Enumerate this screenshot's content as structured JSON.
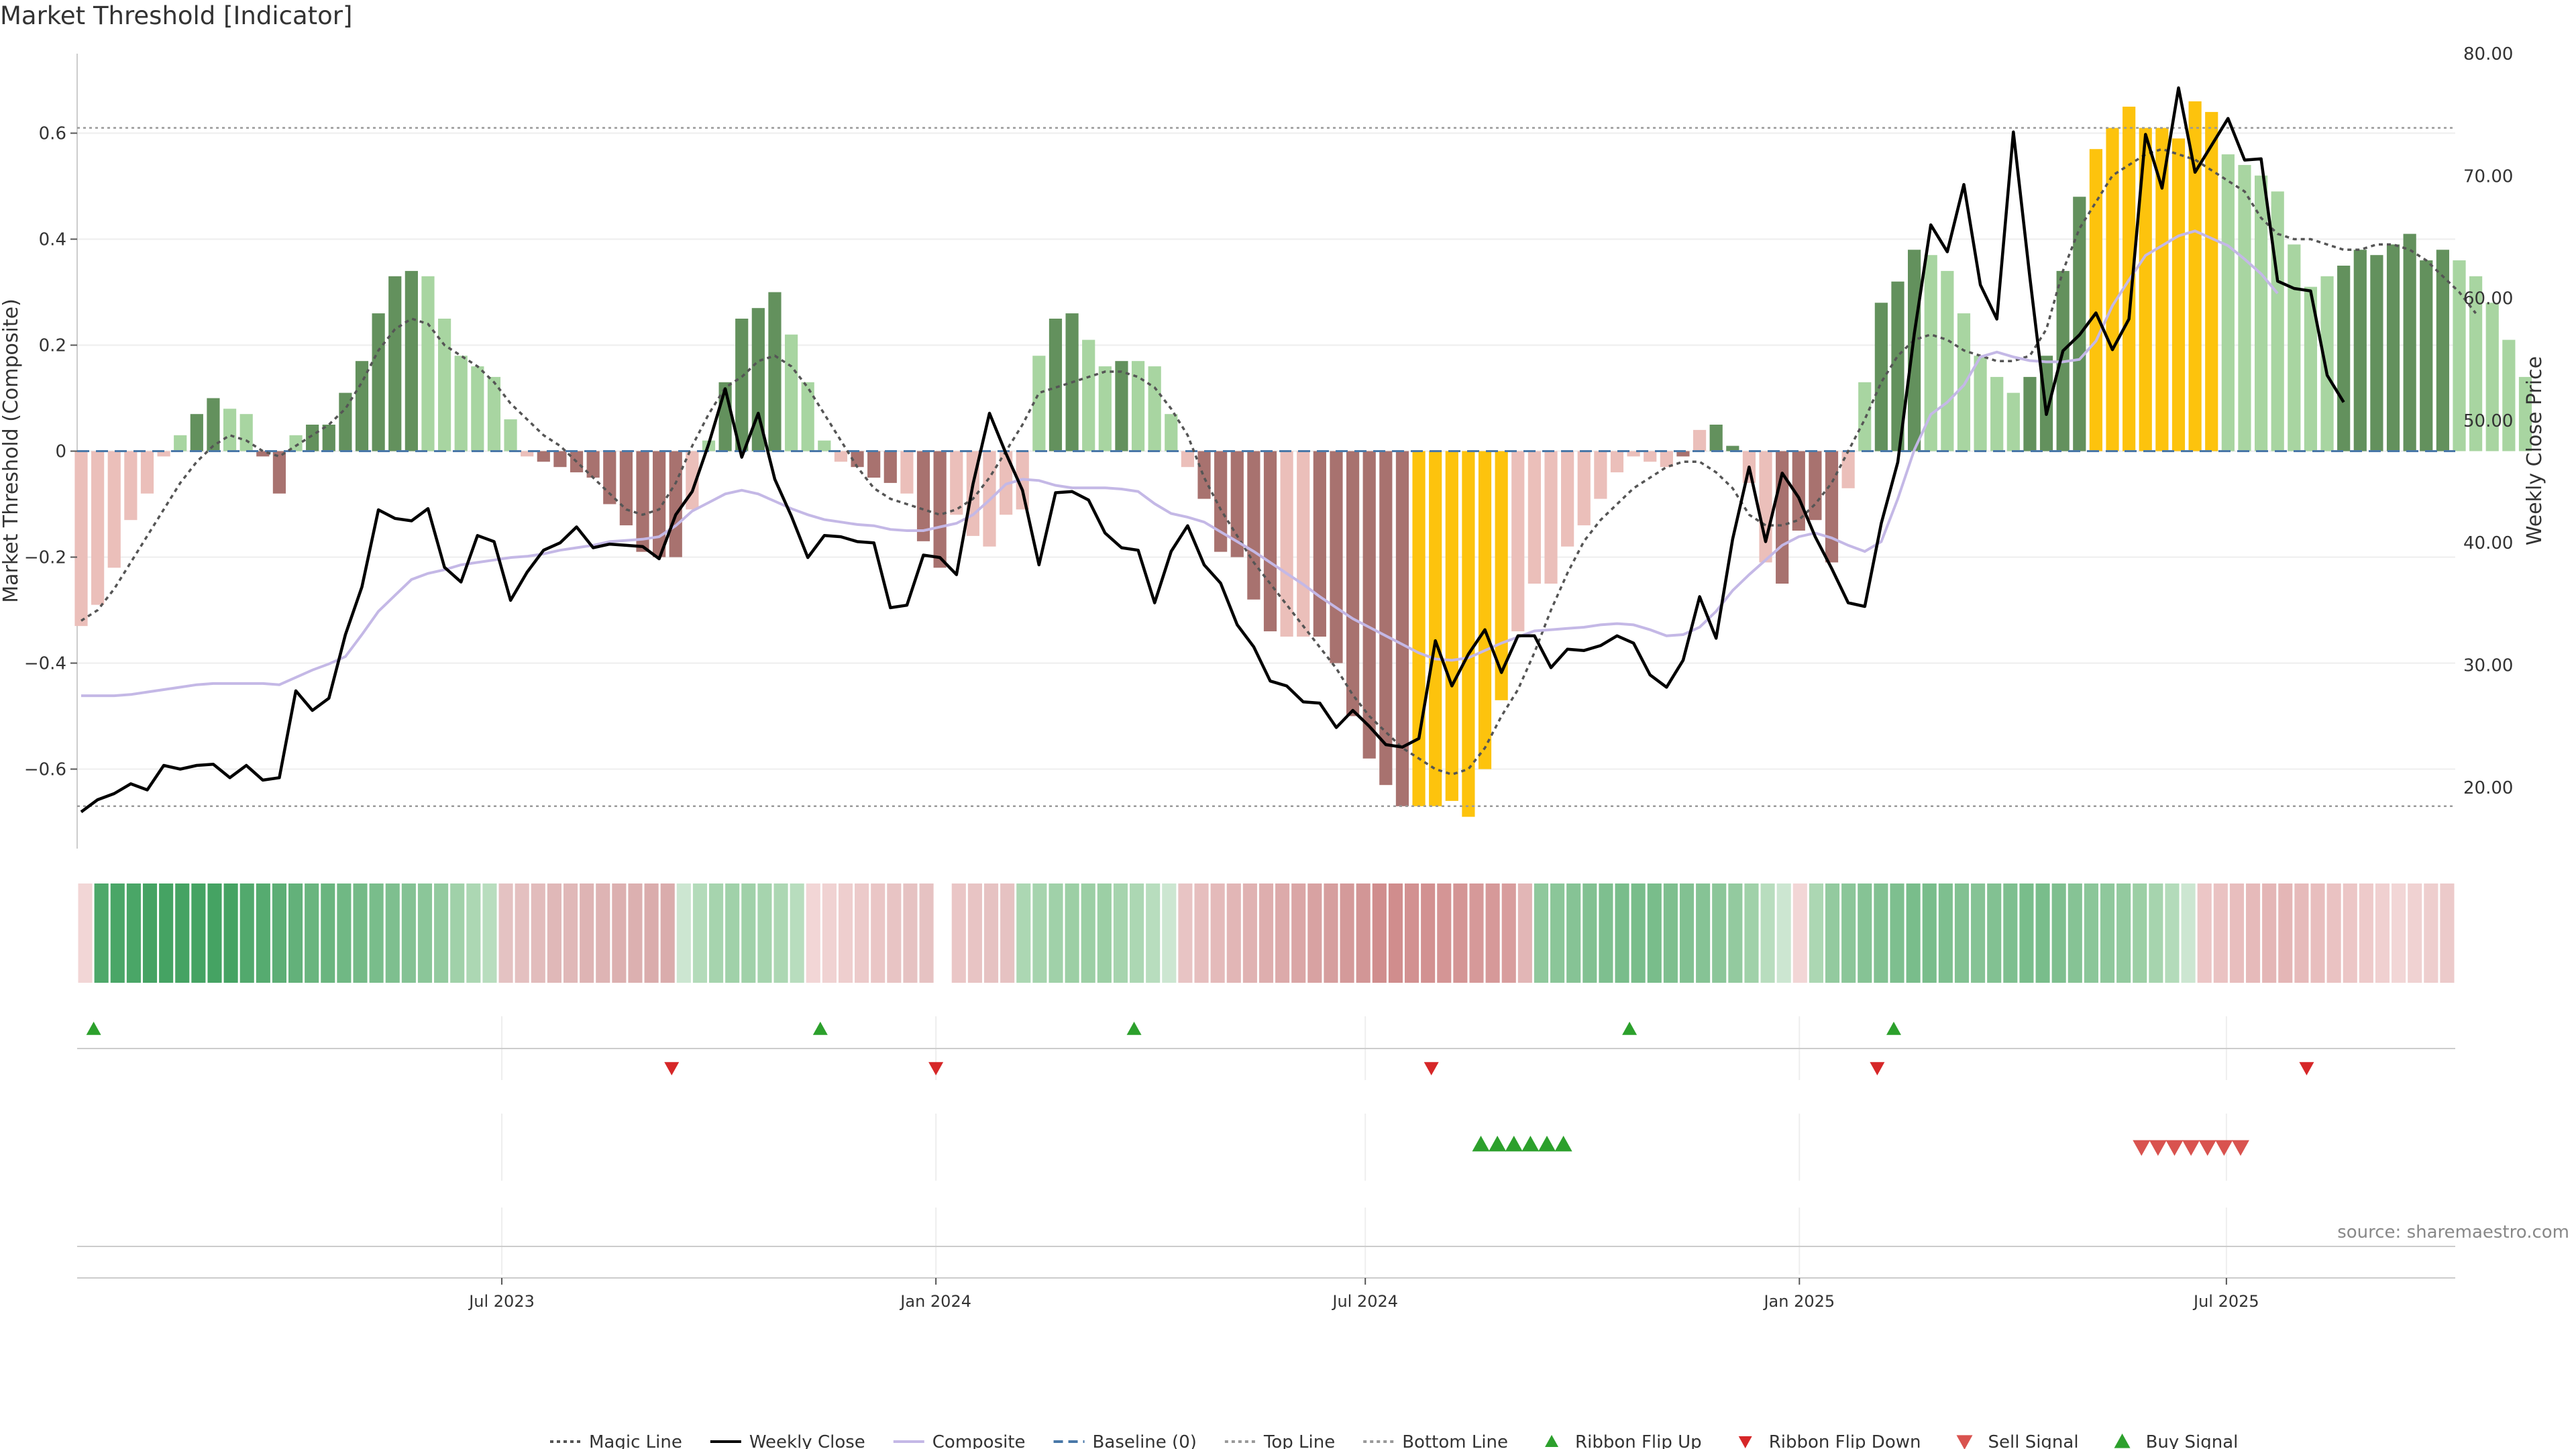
{
  "title": "Market Threshold [Indicator]",
  "source": "source: sharemaestro.com",
  "chart_data": {
    "type": "bar",
    "title": "Market Threshold [Indicator]",
    "ylabel_left": "Market Threshold (Composite)",
    "ylabel_right": "Weekly Close Price",
    "ylim_left": [
      -0.75,
      0.75
    ],
    "ylim_right": [
      15,
      80
    ],
    "yticks_left": [
      0.6,
      0.4,
      0.2,
      0,
      -0.2,
      -0.4,
      -0.6
    ],
    "ytick_labels_left": [
      "0.6",
      "0.4",
      "0.2",
      "0",
      "−0.2",
      "−0.4",
      "−0.6"
    ],
    "yticks_right": [
      80,
      70,
      60,
      50,
      40,
      30,
      20
    ],
    "ytick_labels_right": [
      "80.00",
      "70.00",
      "60.00",
      "50.00",
      "40.00",
      "30.00",
      "20.00"
    ],
    "date_range": [
      "2023-01-02",
      "2025-10-06"
    ],
    "xticks": [
      {
        "date": "2023-07-01",
        "label": "Jul 2023"
      },
      {
        "date": "2024-01-01",
        "label": "Jan 2024"
      },
      {
        "date": "2024-07-01",
        "label": "Jul 2024"
      },
      {
        "date": "2025-01-01",
        "label": "Jan 2025"
      },
      {
        "date": "2025-07-01",
        "label": "Jul 2025"
      }
    ],
    "top_line": 0.61,
    "bottom_line": -0.67,
    "composite_bars": {
      "start_date": "2023-01-02",
      "interval_days": 7,
      "values": [
        -0.33,
        -0.29,
        -0.22,
        -0.13,
        -0.08,
        -0.01,
        0.03,
        0.07,
        0.1,
        0.08,
        0.07,
        -0.01,
        -0.08,
        0.03,
        0.05,
        0.05,
        0.11,
        0.17,
        0.26,
        0.33,
        0.34,
        0.33,
        0.25,
        0.18,
        0.16,
        0.14,
        0.06,
        -0.01,
        -0.02,
        -0.03,
        -0.04,
        -0.05,
        -0.1,
        -0.14,
        -0.19,
        -0.2,
        -0.2,
        -0.11,
        0.02,
        0.13,
        0.25,
        0.27,
        0.3,
        0.22,
        0.13,
        0.02,
        -0.02,
        -0.03,
        -0.05,
        -0.06,
        -0.08,
        -0.17,
        -0.22,
        -0.12,
        -0.16,
        -0.18,
        -0.12,
        -0.11,
        0.18,
        0.25,
        0.26,
        0.21,
        0.16,
        0.17,
        0.17,
        0.16,
        0.07,
        -0.03,
        -0.09,
        -0.19,
        -0.2,
        -0.28,
        -0.34,
        -0.35,
        -0.35,
        -0.35,
        -0.4,
        -0.5,
        -0.58,
        -0.63,
        -0.67,
        -0.67,
        -0.67,
        -0.66,
        -0.69,
        -0.6,
        -0.47,
        -0.34,
        -0.25,
        -0.25,
        -0.18,
        -0.14,
        -0.09,
        -0.04,
        -0.01,
        -0.02,
        -0.03,
        -0.01,
        0.04,
        0.05,
        0.01,
        -0.06,
        -0.21,
        -0.25,
        -0.15,
        -0.13,
        -0.21,
        -0.07,
        0.13,
        0.28,
        0.32,
        0.38,
        0.37,
        0.34,
        0.26,
        0.18,
        0.14,
        0.11,
        0.14,
        0.18,
        0.34,
        0.48,
        0.57,
        0.61,
        0.65,
        0.61,
        0.61,
        0.59,
        0.66,
        0.64,
        0.56,
        0.54,
        0.52,
        0.49,
        0.39,
        0.31,
        0.33,
        0.35,
        0.38,
        0.37,
        0.39,
        0.41,
        0.36,
        0.38,
        0.36,
        0.33,
        0.28,
        0.21,
        0.14
      ]
    },
    "bar_color_states": "f,f,f,f,f,f,l,d,d,l,l,r,r,l,d,d,d,d,d,d,d,l,l,l,l,l,l,f,r,r,r,r,r,r,r,r,r,f,l,d,d,d,d,l,l,l,f,r,r,r,f,r,r,f,f,f,f,f,l,d,d,l,l,d,l,l,l,f,r,r,r,r,r,f,f,r,r,r,r,r,r,y,y,y,y,y,y,f,f,f,f,f,f,f,f,f,f,r,f,d,d,f,f,r,r,r,r,f,l,d,d,d,l,l,l,l,l,l,d,d,d,d,y,y,y,y,y,y,y,y,l,l,l,l,l,l,l,d,d,d,d,d,d,d,l,l,l,l,l,l",
    "magic_line": [
      -0.32,
      -0.3,
      -0.26,
      -0.21,
      -0.16,
      -0.11,
      -0.06,
      -0.02,
      0.01,
      0.03,
      0.02,
      0.0,
      -0.01,
      0.01,
      0.03,
      0.05,
      0.08,
      0.13,
      0.19,
      0.23,
      0.25,
      0.24,
      0.2,
      0.18,
      0.16,
      0.13,
      0.09,
      0.06,
      0.03,
      0.01,
      -0.02,
      -0.05,
      -0.08,
      -0.11,
      -0.12,
      -0.11,
      -0.06,
      0.01,
      0.07,
      0.12,
      0.14,
      0.17,
      0.18,
      0.16,
      0.12,
      0.07,
      0.02,
      -0.03,
      -0.07,
      -0.09,
      -0.1,
      -0.11,
      -0.12,
      -0.11,
      -0.09,
      -0.05,
      0.0,
      0.05,
      0.11,
      0.12,
      0.13,
      0.14,
      0.15,
      0.15,
      0.14,
      0.12,
      0.08,
      0.03,
      -0.05,
      -0.11,
      -0.16,
      -0.21,
      -0.25,
      -0.29,
      -0.33,
      -0.37,
      -0.41,
      -0.46,
      -0.5,
      -0.53,
      -0.56,
      -0.58,
      -0.6,
      -0.61,
      -0.6,
      -0.56,
      -0.5,
      -0.45,
      -0.38,
      -0.3,
      -0.23,
      -0.17,
      -0.13,
      -0.1,
      -0.07,
      -0.05,
      -0.03,
      -0.02,
      -0.02,
      -0.04,
      -0.07,
      -0.12,
      -0.14,
      -0.14,
      -0.13,
      -0.1,
      -0.06,
      0.0,
      0.06,
      0.13,
      0.18,
      0.21,
      0.22,
      0.21,
      0.19,
      0.18,
      0.17,
      0.17,
      0.18,
      0.23,
      0.34,
      0.42,
      0.47,
      0.52,
      0.54,
      0.56,
      0.57,
      0.56,
      0.55,
      0.53,
      0.51,
      0.49,
      0.44,
      0.41,
      0.4,
      0.4,
      0.39,
      0.38,
      0.38,
      0.39,
      0.39,
      0.38,
      0.36,
      0.33,
      0.3,
      0.26
    ],
    "weekly_close": [
      18,
      19,
      19.5,
      20.3,
      19.8,
      21.8,
      21.5,
      21.8,
      21.9,
      20.8,
      21.8,
      20.6,
      20.8,
      27.9,
      26.3,
      27.3,
      32.5,
      36.4,
      42.7,
      42,
      41.8,
      42.8,
      38,
      36.8,
      40.6,
      40.1,
      35.3,
      37.6,
      39.4,
      40,
      41.3,
      39.6,
      39.9,
      39.8,
      39.7,
      38.7,
      42.3,
      44.2,
      48.1,
      52.6,
      47,
      50.6,
      45.2,
      42.2,
      38.8,
      40.6,
      40.5,
      40.1,
      40,
      34.7,
      34.9,
      39,
      38.8,
      37.4,
      44.8,
      50.6,
      47.3,
      44.3,
      38.2,
      44.1,
      44.2,
      43.5,
      40.8,
      39.6,
      39.4,
      35.1,
      39.3,
      41.4,
      38.2,
      36.7,
      33.3,
      31.5,
      28.7,
      28.3,
      27,
      26.9,
      24.9,
      26.3,
      25,
      23.5,
      23.3,
      24,
      32,
      28.3,
      30.9,
      32.9,
      29.4,
      32.4,
      32.4,
      29.8,
      31.3,
      31.2,
      31.6,
      32.4,
      31.8,
      29.2,
      28.2,
      30.4,
      35.6,
      32.2,
      40.3,
      46.2,
      40.1,
      45.7,
      43.7,
      40.5,
      37.9,
      35.1,
      34.8,
      41.6,
      46.6,
      57.1,
      66,
      63.8,
      69.3,
      61.1,
      58.3,
      73.6,
      61.7,
      50.5,
      55.7,
      57,
      58.8,
      55.8,
      58.3,
      73.4,
      69,
      77.2,
      70.3,
      72.5,
      74.7,
      71.3,
      71.4,
      61.4,
      60.8,
      60.6,
      53.7,
      51.5
    ],
    "composite_line": [
      27.5,
      27.5,
      27.5,
      27.6,
      27.8,
      28,
      28.2,
      28.4,
      28.5,
      28.5,
      28.5,
      28.5,
      28.4,
      29,
      29.6,
      30.1,
      30.7,
      32.5,
      34.4,
      35.7,
      37,
      37.5,
      37.8,
      38.2,
      38.4,
      38.6,
      38.8,
      38.9,
      39.1,
      39.4,
      39.6,
      39.8,
      40.1,
      40.2,
      40.3,
      40.5,
      41.4,
      42.6,
      43.3,
      44,
      44.3,
      44,
      43.4,
      42.8,
      42.3,
      41.9,
      41.7,
      41.5,
      41.4,
      41.1,
      41,
      41,
      41.3,
      41.6,
      42.3,
      43.5,
      44.8,
      45.2,
      45.1,
      44.7,
      44.5,
      44.5,
      44.5,
      44.4,
      44.2,
      43.2,
      42.4,
      42.1,
      41.7,
      40.9,
      40.1,
      39.3,
      38.4,
      37.5,
      36.6,
      35.6,
      34.7,
      33.8,
      33.1,
      32.4,
      31.7,
      31,
      30.5,
      30.4,
      30.6,
      31.2,
      31.8,
      32.3,
      32.8,
      32.9,
      33,
      33.1,
      33.3,
      33.4,
      33.3,
      32.9,
      32.4,
      32.5,
      33.1,
      34.4,
      36.1,
      37.4,
      38.6,
      39.8,
      40.5,
      40.8,
      40.4,
      39.8,
      39.3,
      40.1,
      43.6,
      47.6,
      50.5,
      51.5,
      52.9,
      55.2,
      55.6,
      55.2,
      54.9,
      54.8,
      54.8,
      55,
      56.5,
      59.4,
      61.5,
      63.5,
      64.3,
      65.1,
      65.5,
      64.9,
      64.3,
      63.2,
      62,
      60.4
    ],
    "ribbon_colors": [
      "#f2d6d6",
      "#4ea86a",
      "#4aa667",
      "#4aa667",
      "#45a363",
      "#45a363",
      "#45a363",
      "#45a363",
      "#45a363",
      "#45a363",
      "#52a96d",
      "#56ab70",
      "#5dae75",
      "#63b17a",
      "#6ab57f",
      "#6ab57f",
      "#70b884",
      "#74ba87",
      "#79bd8b",
      "#7ebf8f",
      "#84c294",
      "#8bc699",
      "#93ca9f",
      "#a0d1a9",
      "#acd7b3",
      "#b8ddbe",
      "#e4c2c2",
      "#e4c0c0",
      "#e2bcbc",
      "#e0b8b8",
      "#e0b8b8",
      "#deb4b4",
      "#deb4b4",
      "#dcb0b0",
      "#dcb0b0",
      "#daacac",
      "#daacac",
      "#cce6d1",
      "#b3dbba",
      "#a6d4ae",
      "#a0d1a9",
      "#a0d1a9",
      "#a6d4ae",
      "#acd7b3",
      "#b8ddbe",
      "#f2d6d6",
      "#f0d2d2",
      "#eecece",
      "#eccaca",
      "#eac6c6",
      "#e8c4c4",
      "#e6c2c2",
      "#e6c2c2",
      "#ffffff",
      "#eac6c6",
      "#e8c4c4",
      "#e6c2c2",
      "#e6c2c2",
      "#acd7b3",
      "#a6d4ae",
      "#a0d1a9",
      "#9ccfa5",
      "#9ccfa5",
      "#9ccfa5",
      "#a6d4ae",
      "#acd7b3",
      "#b8ddbe",
      "#cce6d1",
      "#e8c4c4",
      "#e6bebe",
      "#e4baba",
      "#e2b6b6",
      "#e0b2b2",
      "#deaeae",
      "#dcaaaa",
      "#daa6a6",
      "#d8a2a2",
      "#d69e9e",
      "#d49a9a",
      "#d29696",
      "#d08d8d",
      "#d08d8d",
      "#d29191",
      "#d29191",
      "#d49595",
      "#d49595",
      "#d69999",
      "#d69999",
      "#d89d9d",
      "#e2b6b6",
      "#8fc89c",
      "#8bc699",
      "#86c395",
      "#82c192",
      "#7ebf8f",
      "#79bd8b",
      "#79bd8b",
      "#79bd8b",
      "#7ebf8f",
      "#82c192",
      "#86c395",
      "#8bc699",
      "#93ca9f",
      "#a0d1a9",
      "#b8ddbe",
      "#cce6d1",
      "#f2d6d6",
      "#acd7b3",
      "#93ca9f",
      "#8bc699",
      "#86c395",
      "#82c192",
      "#7ebf8f",
      "#79bd8b",
      "#79bd8b",
      "#7ebf8f",
      "#82c192",
      "#86c395",
      "#82c192",
      "#7ebf8f",
      "#79bd8b",
      "#79bd8b",
      "#7ebf8f",
      "#86c395",
      "#8bc699",
      "#8fc89c",
      "#93ca9f",
      "#9ccfa5",
      "#a6d4ae",
      "#b3dbba",
      "#cce6d1",
      "#ecc6c6",
      "#eac2c2",
      "#e8bebe",
      "#e6baba",
      "#e4b6b6",
      "#e4b6b6",
      "#e6baba",
      "#e8bebe",
      "#eac2c2",
      "#ecc6c6",
      "#eecaca",
      "#f0d0d0",
      "#f2d6d6",
      "#f0d2d2",
      "#eecece",
      "#eccaca"
    ],
    "ribbon_flip_up": [
      "2023-01-09",
      "2023-11-13",
      "2024-03-25",
      "2024-10-21",
      "2025-02-10"
    ],
    "ribbon_flip_down": [
      "2023-09-11",
      "2024-01-01",
      "2024-07-29",
      "2025-02-03",
      "2025-08-04"
    ],
    "buy_signal": [
      "2024-08-19",
      "2024-08-26",
      "2024-09-02",
      "2024-09-09",
      "2024-09-16",
      "2024-09-23"
    ],
    "sell_signal": [
      "2025-05-26",
      "2025-06-02",
      "2025-06-09",
      "2025-06-16",
      "2025-06-23",
      "2025-06-30",
      "2025-07-07"
    ],
    "legend": [
      {
        "label": "Magic Line",
        "style": "dotted-line",
        "color": "#555555"
      },
      {
        "label": "Weekly Close",
        "style": "solid-line",
        "color": "#000000"
      },
      {
        "label": "Composite",
        "style": "solid-line",
        "color": "#c4b8e6"
      },
      {
        "label": "Baseline (0)",
        "style": "dashed-line",
        "color": "#4a78a8"
      },
      {
        "label": "Top Line",
        "style": "dotted-line",
        "color": "#999999"
      },
      {
        "label": "Bottom Line",
        "style": "dotted-line",
        "color": "#999999"
      },
      {
        "label": "Ribbon Flip Up",
        "style": "triangle-up-small",
        "color": "#2ca02c"
      },
      {
        "label": "Ribbon Flip Down",
        "style": "triangle-down-small",
        "color": "#d62728"
      },
      {
        "label": "Sell Signal",
        "style": "triangle-down",
        "color": "#d9534f"
      },
      {
        "label": "Buy Signal",
        "style": "triangle-up",
        "color": "#2ca02c"
      }
    ],
    "legend_position": "bottom-center",
    "grid": true,
    "colors": {
      "dark_green": "#63915d",
      "light_green": "#a8d5a1",
      "dark_red": "#a8726f",
      "light_red": "#ebbfba",
      "gold": "#fdc30d",
      "close": "#000000",
      "magic": "#555555",
      "composite": "#c4b8e6",
      "baseline": "#4a78a8",
      "threshold": "#999999",
      "up": "#2ca02c",
      "down": "#d62728"
    }
  }
}
